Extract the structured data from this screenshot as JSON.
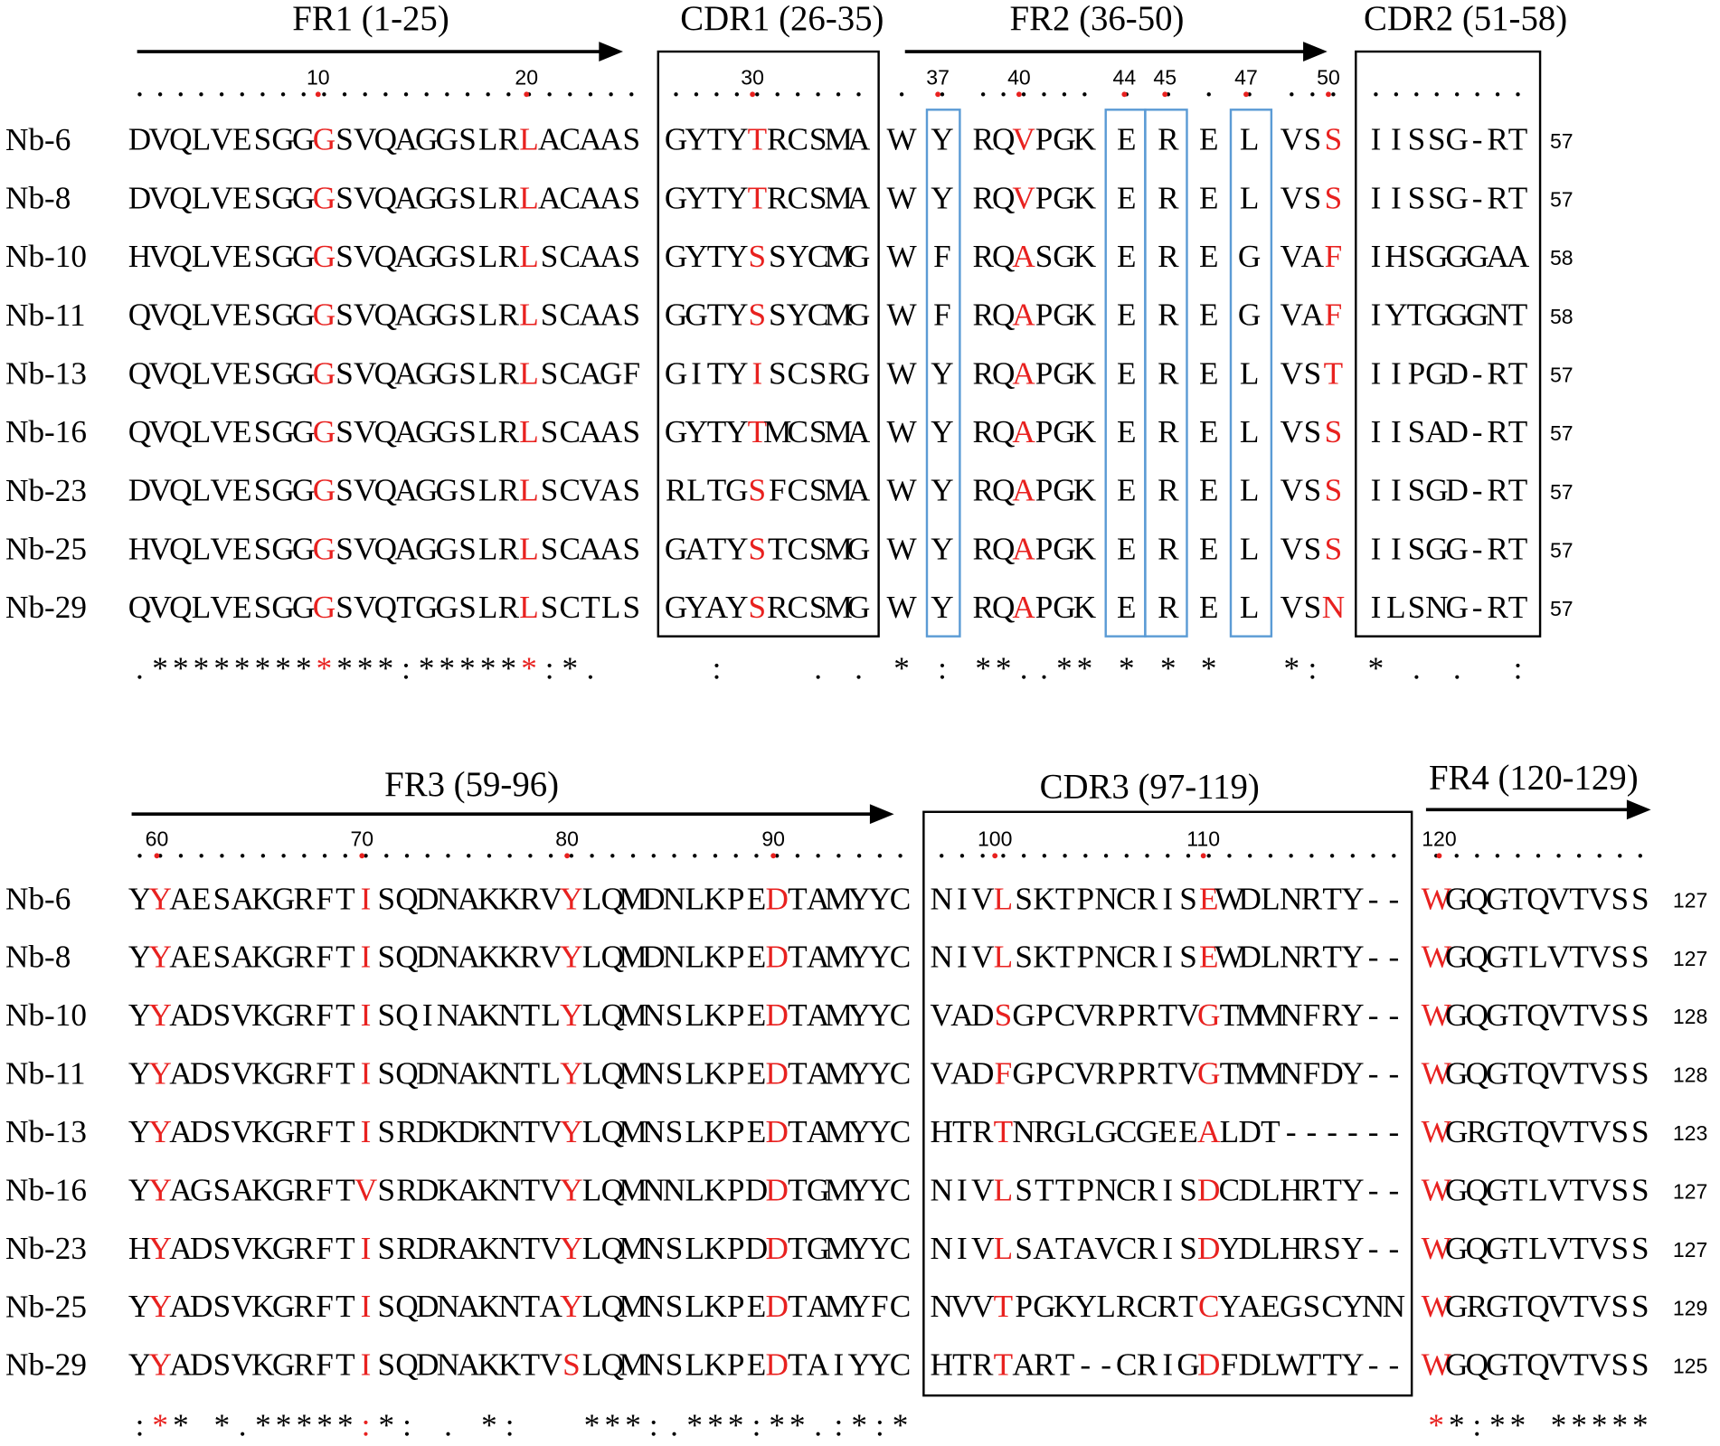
{
  "highlight_color": "#e8211f",
  "box_color": "#000000",
  "marker_box_color": "#5b9bd5",
  "blocks": [
    {
      "regions": [
        {
          "label": "FR1 (1-25)",
          "arrow": true
        },
        {
          "label": "CDR1 (26-35)",
          "arrow": false
        },
        {
          "label": "FR2 (36-50)",
          "arrow": true
        },
        {
          "label": "CDR2 (51-58)",
          "arrow": false
        }
      ],
      "ruler": [
        10,
        20,
        30,
        37,
        40,
        44,
        45,
        47,
        50
      ],
      "rows": [
        {
          "name": "Nb-6",
          "cells": [
            [
              "DVQLVESGG",
              {
                "hl": "G"
              },
              "SVQAGGSLR",
              {
                "hl": "L"
              },
              "ACAAS"
            ],
            [
              "GYTY",
              {
                "hl": "T"
              },
              "RCSMA"
            ],
            [
              "W"
            ],
            [
              "Y"
            ],
            [
              "RQ",
              {
                "hl": "V"
              },
              "PGK"
            ],
            [
              "E"
            ],
            [
              "R"
            ],
            [
              "E"
            ],
            [
              "L"
            ],
            [
              "VS",
              {
                "hl": "S"
              }
            ],
            [
              "IISSG-RT"
            ]
          ],
          "length": 57
        },
        {
          "name": "Nb-8",
          "cells": [
            [
              "DVQLVESGG",
              {
                "hl": "G"
              },
              "SVQAGGSLR",
              {
                "hl": "L"
              },
              "ACAAS"
            ],
            [
              "GYTY",
              {
                "hl": "T"
              },
              "RCSMA"
            ],
            [
              "W"
            ],
            [
              "Y"
            ],
            [
              "RQ",
              {
                "hl": "V"
              },
              "PGK"
            ],
            [
              "E"
            ],
            [
              "R"
            ],
            [
              "E"
            ],
            [
              "L"
            ],
            [
              "VS",
              {
                "hl": "S"
              }
            ],
            [
              "IISSG-RT"
            ]
          ],
          "length": 57
        },
        {
          "name": "Nb-10",
          "cells": [
            [
              "HVQLVESGG",
              {
                "hl": "G"
              },
              "SVQAGGSLR",
              {
                "hl": "L"
              },
              "SCAAS"
            ],
            [
              "GYTY",
              {
                "hl": "S"
              },
              "SYCMG"
            ],
            [
              "W"
            ],
            [
              "F"
            ],
            [
              "RQ",
              {
                "hl": "A"
              },
              "SGK"
            ],
            [
              "E"
            ],
            [
              "R"
            ],
            [
              "E"
            ],
            [
              "G"
            ],
            [
              "VA",
              {
                "hl": "F"
              }
            ],
            [
              "IHSGGGAA"
            ]
          ],
          "length": 58
        },
        {
          "name": "Nb-11",
          "cells": [
            [
              "QVQLVESGG",
              {
                "hl": "G"
              },
              "SVQAGGSLR",
              {
                "hl": "L"
              },
              "SCAAS"
            ],
            [
              "GGTY",
              {
                "hl": "S"
              },
              "SYCMG"
            ],
            [
              "W"
            ],
            [
              "F"
            ],
            [
              "RQ",
              {
                "hl": "A"
              },
              "PGK"
            ],
            [
              "E"
            ],
            [
              "R"
            ],
            [
              "E"
            ],
            [
              "G"
            ],
            [
              "VA",
              {
                "hl": "F"
              }
            ],
            [
              "IYTGGGNT"
            ]
          ],
          "length": 58
        },
        {
          "name": "Nb-13",
          "cells": [
            [
              "QVQLVESGG",
              {
                "hl": "G"
              },
              "SVQAGGSLR",
              {
                "hl": "L"
              },
              "SCAGF"
            ],
            [
              "GITY",
              {
                "hl": "I"
              },
              "SCSRG"
            ],
            [
              "W"
            ],
            [
              "Y"
            ],
            [
              "RQ",
              {
                "hl": "A"
              },
              "PGK"
            ],
            [
              "E"
            ],
            [
              "R"
            ],
            [
              "E"
            ],
            [
              "L"
            ],
            [
              "VS",
              {
                "hl": "T"
              }
            ],
            [
              "IIPGD-RT"
            ]
          ],
          "length": 57
        },
        {
          "name": "Nb-16",
          "cells": [
            [
              "QVQLVESGG",
              {
                "hl": "G"
              },
              "SVQAGGSLR",
              {
                "hl": "L"
              },
              "SCAAS"
            ],
            [
              "GYTY",
              {
                "hl": "T"
              },
              "MCSMA"
            ],
            [
              "W"
            ],
            [
              "Y"
            ],
            [
              "RQ",
              {
                "hl": "A"
              },
              "PGK"
            ],
            [
              "E"
            ],
            [
              "R"
            ],
            [
              "E"
            ],
            [
              "L"
            ],
            [
              "VS",
              {
                "hl": "S"
              }
            ],
            [
              "IISAD-RT"
            ]
          ],
          "length": 57
        },
        {
          "name": "Nb-23",
          "cells": [
            [
              "DVQLVESGG",
              {
                "hl": "G"
              },
              "SVQAGGSLR",
              {
                "hl": "L"
              },
              "SCVAS"
            ],
            [
              "RLTG",
              {
                "hl": "S"
              },
              "FCSMA"
            ],
            [
              "W"
            ],
            [
              "Y"
            ],
            [
              "RQ",
              {
                "hl": "A"
              },
              "PGK"
            ],
            [
              "E"
            ],
            [
              "R"
            ],
            [
              "E"
            ],
            [
              "L"
            ],
            [
              "VS",
              {
                "hl": "S"
              }
            ],
            [
              "IISGD-RT"
            ]
          ],
          "length": 57
        },
        {
          "name": "Nb-25",
          "cells": [
            [
              "HVQLVESGG",
              {
                "hl": "G"
              },
              "SVQAGGSLR",
              {
                "hl": "L"
              },
              "SCAAS"
            ],
            [
              "GATY",
              {
                "hl": "S"
              },
              "TCSMG"
            ],
            [
              "W"
            ],
            [
              "Y"
            ],
            [
              "RQ",
              {
                "hl": "A"
              },
              "PGK"
            ],
            [
              "E"
            ],
            [
              "R"
            ],
            [
              "E"
            ],
            [
              "L"
            ],
            [
              "VS",
              {
                "hl": "S"
              }
            ],
            [
              "IISGG-RT"
            ]
          ],
          "length": 57
        },
        {
          "name": "Nb-29",
          "cells": [
            [
              "QVQLVESGG",
              {
                "hl": "G"
              },
              "SVQTGGSLR",
              {
                "hl": "L"
              },
              "SCTLS"
            ],
            [
              "GYAY",
              {
                "hl": "S"
              },
              "RCSMG"
            ],
            [
              "W"
            ],
            [
              "Y"
            ],
            [
              "RQ",
              {
                "hl": "A"
              },
              "PGK"
            ],
            [
              "E"
            ],
            [
              "R"
            ],
            [
              "E"
            ],
            [
              "L"
            ],
            [
              "VS",
              {
                "hl": "N"
              }
            ],
            [
              "ILSNG-RT"
            ]
          ],
          "length": 57
        }
      ],
      "consensus": [
        [
          ".********",
          {
            "hl": "*"
          },
          "***:*****",
          {
            "hl": "*"
          },
          ":*."
        ],
        [
          "  :    . ."
        ],
        [
          "*"
        ],
        [
          ":"
        ],
        [
          "**..**"
        ],
        [
          "*"
        ],
        [
          "*"
        ],
        [
          "*"
        ],
        null,
        [
          "*:"
        ],
        [
          "* . .  :"
        ]
      ]
    },
    {
      "regions": [
        {
          "label": "FR3 (59-96)",
          "arrow": true
        },
        {
          "label": "CDR3 (97-119)",
          "arrow": false
        },
        {
          "label": "FR4 (120-129)",
          "arrow": true
        }
      ],
      "ruler": [
        60,
        70,
        80,
        90,
        100,
        110,
        120
      ],
      "rows": [
        {
          "name": "Nb-6",
          "cells": [
            [
              "Y",
              {
                "hl": "Y"
              },
              "AESAKGRFT",
              {
                "hl": "I"
              },
              "SQDNAKKRV",
              {
                "hl": "Y"
              },
              "LQMDNLKPE",
              {
                "hl": "D"
              },
              "TAMYYC"
            ],
            [
              "NIV",
              {
                "hl": "L"
              },
              "SKTPNCRIS",
              {
                "hl": "E"
              },
              "WDLNRTY--"
            ],
            [
              {
                "hl": "W"
              },
              "GQGTQVTVSS"
            ]
          ],
          "length": 127
        },
        {
          "name": "Nb-8",
          "cells": [
            [
              "Y",
              {
                "hl": "Y"
              },
              "AESAKGRFT",
              {
                "hl": "I"
              },
              "SQDNAKKRV",
              {
                "hl": "Y"
              },
              "LQMDNLKPE",
              {
                "hl": "D"
              },
              "TAMYYC"
            ],
            [
              "NIV",
              {
                "hl": "L"
              },
              "SKTPNCRIS",
              {
                "hl": "E"
              },
              "WDLNRTY--"
            ],
            [
              {
                "hl": "W"
              },
              "GQGTLVTVSS"
            ]
          ],
          "length": 127
        },
        {
          "name": "Nb-10",
          "cells": [
            [
              "Y",
              {
                "hl": "Y"
              },
              "ADSVKGRFT",
              {
                "hl": "I"
              },
              "SQINAKNTL",
              {
                "hl": "Y"
              },
              "LQMNSLKPE",
              {
                "hl": "D"
              },
              "TAMYYC"
            ],
            [
              "VAD",
              {
                "hl": "S"
              },
              "GPCVRPRTV",
              {
                "hl": "G"
              },
              "TMMNFRY--"
            ],
            [
              {
                "hl": "W"
              },
              "GQGTQVTVSS"
            ]
          ],
          "length": 128
        },
        {
          "name": "Nb-11",
          "cells": [
            [
              "Y",
              {
                "hl": "Y"
              },
              "ADSVKGRFT",
              {
                "hl": "I"
              },
              "SQDNAKNTL",
              {
                "hl": "Y"
              },
              "LQMNSLKPE",
              {
                "hl": "D"
              },
              "TAMYYC"
            ],
            [
              "VAD",
              {
                "hl": "F"
              },
              "GPCVRPRTV",
              {
                "hl": "G"
              },
              "TMMNFDY--"
            ],
            [
              {
                "hl": "W"
              },
              "GQGTQVTVSS"
            ]
          ],
          "length": 128
        },
        {
          "name": "Nb-13",
          "cells": [
            [
              "Y",
              {
                "hl": "Y"
              },
              "ADSVKGRFT",
              {
                "hl": "I"
              },
              "SRDKDKNTV",
              {
                "hl": "Y"
              },
              "LQMNSLKPE",
              {
                "hl": "D"
              },
              "TAMYYC"
            ],
            [
              "HTR",
              {
                "hl": "T"
              },
              "NRGLGCGEE",
              {
                "hl": "A"
              },
              "LDT------"
            ],
            [
              {
                "hl": "W"
              },
              "GRGTQVTVSS"
            ]
          ],
          "length": 123
        },
        {
          "name": "Nb-16",
          "cells": [
            [
              "Y",
              {
                "hl": "Y"
              },
              "AGSAKGRFT",
              {
                "hl": "V"
              },
              "SRDKAKNTV",
              {
                "hl": "Y"
              },
              "LQMNNLKPD",
              {
                "hl": "D"
              },
              "TGMYYC"
            ],
            [
              "NIV",
              {
                "hl": "L"
              },
              "STTPNCRIS",
              {
                "hl": "D"
              },
              "CDLHRTY--"
            ],
            [
              {
                "hl": "W"
              },
              "GQGTLVTVSS"
            ]
          ],
          "length": 127
        },
        {
          "name": "Nb-23",
          "cells": [
            [
              "H",
              {
                "hl": "Y"
              },
              "ADSVKGRFT",
              {
                "hl": "I"
              },
              "SRDRAKNTV",
              {
                "hl": "Y"
              },
              "LQMNSLKPD",
              {
                "hl": "D"
              },
              "TGMYYC"
            ],
            [
              "NIV",
              {
                "hl": "L"
              },
              "SATAVCRIS",
              {
                "hl": "D"
              },
              "YDLHRSY--"
            ],
            [
              {
                "hl": "W"
              },
              "GQGTLVTVSS"
            ]
          ],
          "length": 127
        },
        {
          "name": "Nb-25",
          "cells": [
            [
              "Y",
              {
                "hl": "Y"
              },
              "ADSVKGRFT",
              {
                "hl": "I"
              },
              "SQDNAKNTA",
              {
                "hl": "Y"
              },
              "LQMNSLKPE",
              {
                "hl": "D"
              },
              "TAMYFC"
            ],
            [
              "NVV",
              {
                "hl": "T"
              },
              "PGKYLRCRT",
              {
                "hl": "C"
              },
              "YAEGSCYNN"
            ],
            [
              {
                "hl": "W"
              },
              "GRGTQVTVSS"
            ]
          ],
          "length": 129
        },
        {
          "name": "Nb-29",
          "cells": [
            [
              "Y",
              {
                "hl": "Y"
              },
              "ADSVKGRFT",
              {
                "hl": "I"
              },
              "SQDNAKKTV",
              {
                "hl": "S"
              },
              "LQMNSLKPE",
              {
                "hl": "D"
              },
              "TAIYYC"
            ],
            [
              "HTR",
              {
                "hl": "T"
              },
              "ART--CRIG",
              {
                "hl": "D"
              },
              "FDLWTTY--"
            ],
            [
              {
                "hl": "W"
              },
              "GQGTQVTVSS"
            ]
          ],
          "length": 125
        }
      ],
      "consensus": [
        [
          ":",
          {
            "hl": "*"
          },
          "* *.*****",
          {
            "hl": ":"
          },
          "*: . *:   ***:.***:**.:*:*"
        ],
        null,
        [
          {
            "hl": "*"
          },
          "*:** *****"
        ]
      ]
    }
  ]
}
